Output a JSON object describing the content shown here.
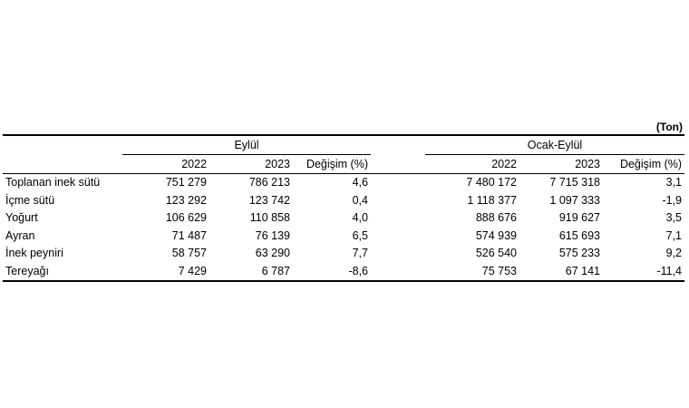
{
  "unit": "(Ton)",
  "groups": [
    "Eylül",
    "Ocak-Eylül"
  ],
  "columns": [
    "2022",
    "2023",
    "Değişim (%)",
    "2022",
    "2023",
    "Değişim (%)"
  ],
  "rows": [
    {
      "label": "Toplanan inek sütü",
      "values": [
        "751 279",
        "786 213",
        "4,6",
        "7 480 172",
        "7 715 318",
        "3,1"
      ]
    },
    {
      "label": "İçme sütü",
      "values": [
        "123 292",
        "123 742",
        "0,4",
        "1 118 377",
        "1 097 333",
        "-1,9"
      ]
    },
    {
      "label": "Yoğurt",
      "values": [
        "106 629",
        "110 858",
        "4,0",
        "888 676",
        "919 627",
        "3,5"
      ]
    },
    {
      "label": "Ayran",
      "values": [
        "71 487",
        "76 139",
        "6,5",
        "574 939",
        "615 693",
        "7,1"
      ]
    },
    {
      "label": "İnek peyniri",
      "values": [
        "58 757",
        "63 290",
        "7,7",
        "526 540",
        "575 233",
        "9,2"
      ]
    },
    {
      "label": "Tereyağı",
      "values": [
        "7 429",
        "6 787",
        "-8,6",
        "75 753",
        "67 141",
        "-11,4"
      ]
    }
  ]
}
